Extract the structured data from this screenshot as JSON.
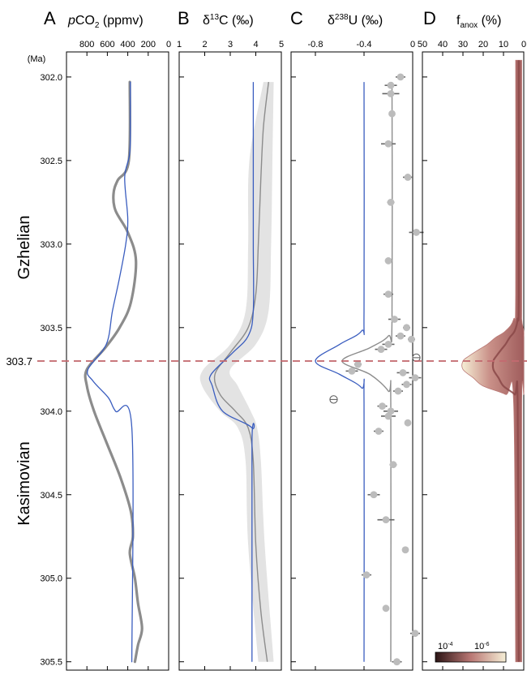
{
  "figure": {
    "age_unit": "(Ma)",
    "marker_label": "303.7",
    "stage_upper": "Gzhelian",
    "stage_lower": "Kasimovian",
    "colors": {
      "model_blue": "#3a5dbf",
      "data_grey": "#8c8c8c",
      "point_grey": "#bcbcbc",
      "band_grey": "#e3e3e3",
      "marker_red": "#c46a70",
      "fanox_dark": "#2b1414",
      "fanox_mid": "#b97774",
      "fanox_light": "#f6efd6"
    }
  },
  "chart_data": [
    {
      "type": "line",
      "panel": "A",
      "title_italic": "p",
      "title_main": "CO",
      "title_sub": "2",
      "title_tail": " (ppmv)",
      "x_reversed": true,
      "xlim": [
        0,
        1000
      ],
      "xticks": [
        800,
        600,
        400,
        200,
        0
      ],
      "ylim": [
        301.85,
        305.55
      ],
      "yticks": [
        302.0,
        302.5,
        303.0,
        303.5,
        304.0,
        304.5,
        305.0,
        305.5
      ],
      "series": [
        {
          "role": "data-curve",
          "style": "thick-grey",
          "points": [
            [
              302.03,
              380
            ],
            [
              302.5,
              390
            ],
            [
              302.62,
              500
            ],
            [
              302.7,
              540
            ],
            [
              302.8,
              520
            ],
            [
              302.93,
              400
            ],
            [
              303.1,
              320
            ],
            [
              303.35,
              370
            ],
            [
              303.5,
              480
            ],
            [
              303.62,
              620
            ],
            [
              303.75,
              800
            ],
            [
              303.85,
              800
            ],
            [
              304.0,
              730
            ],
            [
              304.2,
              600
            ],
            [
              304.4,
              470
            ],
            [
              304.6,
              370
            ],
            [
              304.75,
              350
            ],
            [
              304.85,
              380
            ],
            [
              305.0,
              330
            ],
            [
              305.15,
              300
            ],
            [
              305.3,
              260
            ],
            [
              305.4,
              300
            ],
            [
              305.5,
              330
            ]
          ]
        },
        {
          "role": "model",
          "style": "thin-blue",
          "points": [
            [
              302.03,
              375
            ],
            [
              302.2,
              375
            ],
            [
              302.45,
              380
            ],
            [
              302.6,
              430
            ],
            [
              302.85,
              400
            ],
            [
              303.0,
              420
            ],
            [
              303.2,
              480
            ],
            [
              303.4,
              550
            ],
            [
              303.6,
              610
            ],
            [
              303.75,
              790
            ],
            [
              303.82,
              740
            ],
            [
              303.92,
              590
            ],
            [
              304.0,
              520
            ],
            [
              304.1,
              360
            ],
            [
              305.5,
              360
            ]
          ]
        }
      ]
    },
    {
      "type": "line",
      "panel": "B",
      "title_main": "δ",
      "title_sup": "13",
      "title_tail": "C (‰)",
      "xlim": [
        1,
        5
      ],
      "xticks": [
        1,
        2,
        3,
        4,
        5
      ],
      "ylim": [
        301.85,
        305.55
      ],
      "series": [
        {
          "role": "uncertainty-band",
          "style": "grey-band",
          "points": [
            [
              302.03,
              4.3,
              4.7
            ],
            [
              302.5,
              3.75,
              4.65
            ],
            [
              303.0,
              3.7,
              4.6
            ],
            [
              303.4,
              3.6,
              4.5
            ],
            [
              303.6,
              3.0,
              4.0
            ],
            [
              303.75,
              1.95,
              3.0
            ],
            [
              303.85,
              1.9,
              3.3
            ],
            [
              304.0,
              2.6,
              3.8
            ],
            [
              304.1,
              3.3,
              4.05
            ],
            [
              304.3,
              3.6,
              4.2
            ],
            [
              304.8,
              3.7,
              4.35
            ],
            [
              305.5,
              4.1,
              4.7
            ]
          ]
        },
        {
          "role": "data-curve",
          "style": "thin-grey",
          "points": [
            [
              302.03,
              4.5
            ],
            [
              302.3,
              4.3
            ],
            [
              302.6,
              4.2
            ],
            [
              303.0,
              4.1
            ],
            [
              303.3,
              4.0
            ],
            [
              303.5,
              3.7
            ],
            [
              303.65,
              3.0
            ],
            [
              303.78,
              2.4
            ],
            [
              303.9,
              2.6
            ],
            [
              304.0,
              3.2
            ],
            [
              304.1,
              3.7
            ],
            [
              304.3,
              3.9
            ],
            [
              304.8,
              4.0
            ],
            [
              305.2,
              4.2
            ],
            [
              305.5,
              4.45
            ]
          ]
        },
        {
          "role": "model",
          "style": "thin-blue",
          "points": [
            [
              302.03,
              3.9
            ],
            [
              302.5,
              3.9
            ],
            [
              303.0,
              3.9
            ],
            [
              303.4,
              3.9
            ],
            [
              303.55,
              3.7
            ],
            [
              303.65,
              3.1
            ],
            [
              303.78,
              2.25
            ],
            [
              303.85,
              2.3
            ],
            [
              304.0,
              2.7
            ],
            [
              304.1,
              3.85
            ],
            [
              304.2,
              3.85
            ],
            [
              305.5,
              3.85
            ]
          ]
        }
      ]
    },
    {
      "type": "scatter",
      "panel": "C",
      "title_main": "δ",
      "title_sup": "238",
      "title_tail": "U (‰)",
      "xlim": [
        -1.0,
        0.0
      ],
      "xticks": [
        -0.8,
        -0.4,
        0
      ],
      "ylim": [
        301.85,
        305.55
      ],
      "series": [
        {
          "role": "model",
          "style": "thin-blue",
          "points": [
            [
              302.03,
              -0.4
            ],
            [
              303.4,
              -0.4
            ],
            [
              303.52,
              -0.42
            ],
            [
              303.6,
              -0.6
            ],
            [
              303.7,
              -0.8
            ],
            [
              303.78,
              -0.6
            ],
            [
              303.86,
              -0.42
            ],
            [
              303.95,
              -0.4
            ],
            [
              305.5,
              -0.4
            ]
          ]
        },
        {
          "role": "data-curve",
          "style": "thin-grey",
          "points": [
            [
              302.03,
              -0.17
            ],
            [
              303.45,
              -0.17
            ],
            [
              303.55,
              -0.2
            ],
            [
              303.62,
              -0.35
            ],
            [
              303.7,
              -0.58
            ],
            [
              303.78,
              -0.35
            ],
            [
              303.88,
              -0.2
            ],
            [
              303.95,
              -0.18
            ],
            [
              305.5,
              -0.18
            ]
          ]
        }
      ],
      "points": [
        {
          "age": 302.0,
          "d238U": -0.1,
          "err": 0.04
        },
        {
          "age": 302.05,
          "d238U": -0.18,
          "err": 0.05
        },
        {
          "age": 302.1,
          "d238U": -0.18,
          "err": 0.07
        },
        {
          "age": 302.22,
          "d238U": -0.17,
          "err": 0.0
        },
        {
          "age": 302.4,
          "d238U": -0.2,
          "err": 0.06
        },
        {
          "age": 302.6,
          "d238U": -0.04,
          "err": 0.04
        },
        {
          "age": 302.75,
          "d238U": -0.18,
          "err": 0.03
        },
        {
          "age": 302.93,
          "d238U": 0.03,
          "err": 0.06
        },
        {
          "age": 303.1,
          "d238U": -0.2,
          "err": 0.0
        },
        {
          "age": 303.3,
          "d238U": -0.2,
          "err": 0.04
        },
        {
          "age": 303.45,
          "d238U": -0.15,
          "err": 0.05
        },
        {
          "age": 303.5,
          "d238U": -0.05,
          "err": 0.03
        },
        {
          "age": 303.55,
          "d238U": -0.1,
          "err": 0.04
        },
        {
          "age": 303.57,
          "d238U": -0.01,
          "err": 0.03
        },
        {
          "age": 303.6,
          "d238U": -0.2,
          "err": 0.05
        },
        {
          "age": 303.63,
          "d238U": -0.26,
          "err": 0.05
        },
        {
          "age": 303.68,
          "d238U": 0.03,
          "err": 0.0,
          "open": true
        },
        {
          "age": 303.72,
          "d238U": -0.45,
          "err": 0.03
        },
        {
          "age": 303.76,
          "d238U": -0.5,
          "err": 0.05
        },
        {
          "age": 303.77,
          "d238U": -0.08,
          "err": 0.05
        },
        {
          "age": 303.8,
          "d238U": 0.02,
          "err": 0.05
        },
        {
          "age": 303.84,
          "d238U": -0.05,
          "err": 0.04
        },
        {
          "age": 303.88,
          "d238U": -0.12,
          "err": 0.04
        },
        {
          "age": 303.93,
          "d238U": -0.65,
          "err": 0.0,
          "open": true
        },
        {
          "age": 303.97,
          "d238U": -0.25,
          "err": 0.04
        },
        {
          "age": 304.0,
          "d238U": -0.18,
          "err": 0.06
        },
        {
          "age": 304.03,
          "d238U": -0.2,
          "err": 0.06
        },
        {
          "age": 304.07,
          "d238U": -0.04,
          "err": 0.0
        },
        {
          "age": 304.12,
          "d238U": -0.28,
          "err": 0.04
        },
        {
          "age": 304.32,
          "d238U": -0.16,
          "err": 0.03
        },
        {
          "age": 304.5,
          "d238U": -0.32,
          "err": 0.05
        },
        {
          "age": 304.65,
          "d238U": -0.22,
          "err": 0.07
        },
        {
          "age": 304.83,
          "d238U": -0.06,
          "err": 0.0
        },
        {
          "age": 304.98,
          "d238U": -0.38,
          "err": 0.04
        },
        {
          "age": 305.18,
          "d238U": -0.22,
          "err": 0.0
        },
        {
          "age": 305.33,
          "d238U": 0.02,
          "err": 0.04
        },
        {
          "age": 305.5,
          "d238U": -0.13,
          "err": 0.04
        }
      ]
    },
    {
      "type": "heatmap",
      "panel": "D",
      "title_main": "f",
      "title_sub": "anox",
      "title_tail": " (%)",
      "x_reversed": true,
      "xlim": [
        0,
        50
      ],
      "xticks": [
        50,
        40,
        30,
        20,
        10,
        0
      ],
      "ylim": [
        301.85,
        305.55
      ],
      "colorbar_labels": [
        "10",
        "-4",
        "10",
        "-6"
      ],
      "envelope": [
        [
          301.9,
          1,
          4
        ],
        [
          303.3,
          1,
          4
        ],
        [
          303.45,
          1,
          5
        ],
        [
          303.52,
          0,
          9
        ],
        [
          303.56,
          0,
          14
        ],
        [
          303.6,
          0,
          18
        ],
        [
          303.63,
          0,
          22
        ],
        [
          303.67,
          0,
          27
        ],
        [
          303.7,
          0,
          30
        ],
        [
          303.75,
          0,
          30
        ],
        [
          303.8,
          0,
          25
        ],
        [
          303.85,
          0,
          20
        ],
        [
          303.9,
          0,
          9
        ],
        [
          303.95,
          1,
          5
        ],
        [
          305.5,
          1,
          4
        ]
      ]
    }
  ]
}
